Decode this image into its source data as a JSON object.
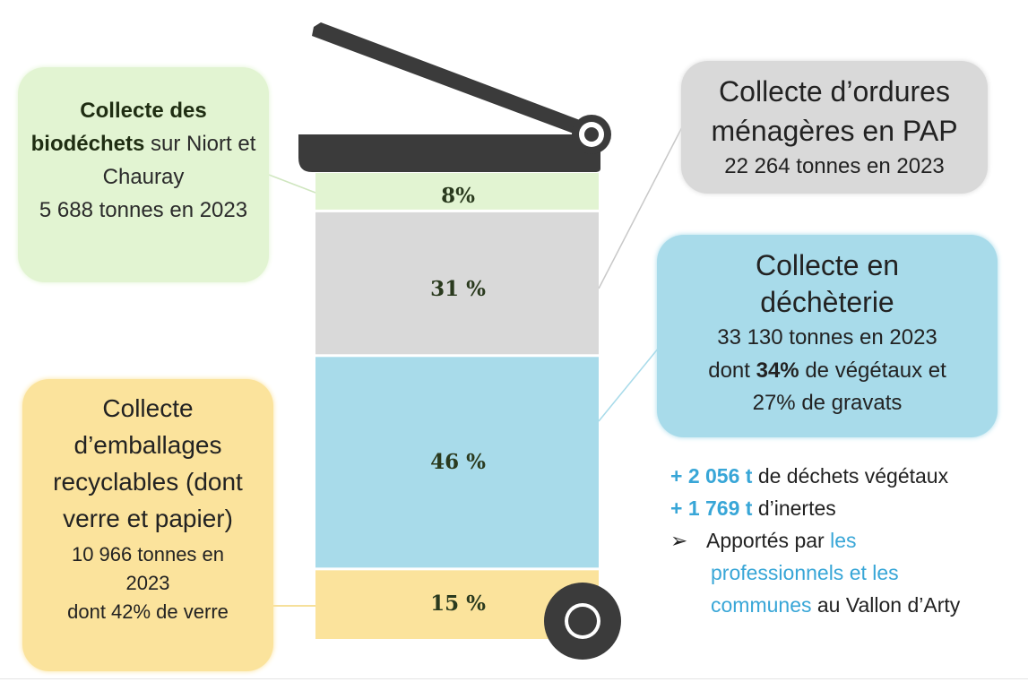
{
  "colors": {
    "biodechets": "#e2f4d2",
    "ordures": "#d9d9d9",
    "decheterie": "#a8dbea",
    "emballages": "#fbe39c",
    "bin_dark": "#3b3b3b",
    "accent_blue": "#38a6d7"
  },
  "chart_data": {
    "type": "stacked-bar",
    "categories": [
      "biodéchets",
      "ordures ménagères PAP",
      "déchèterie",
      "emballages recyclables"
    ],
    "values": [
      8,
      31,
      46,
      15
    ],
    "labels": [
      "8%",
      "31 %",
      "46 %",
      "15 %"
    ]
  },
  "boxes": {
    "biodechets": {
      "title_bold": "Collecte des biodéchets",
      "title_rest": " sur Niort et Chauray",
      "tonnage": "5 688 tonnes en 2023"
    },
    "ordures": {
      "title_line1": "Collecte d’ordures",
      "title_line2": "ménagères en PAP",
      "tonnage": "22 264 tonnes en 2023"
    },
    "decheterie": {
      "title_line1": "Collecte en",
      "title_line2": "déchèterie",
      "tonnage": "33 130 tonnes en 2023",
      "detail_pre": "dont ",
      "detail_bold": "34%",
      "detail_post": " de végétaux et",
      "detail_line2": "27% de gravats"
    },
    "emballages": {
      "title": "Collecte d’emballages recyclables (dont verre et papier)",
      "tonnage": "10 966 tonnes en 2023",
      "detail": "dont 42% de verre"
    }
  },
  "bullets": {
    "vegetaux_amount": "+ 2 056 t",
    "vegetaux_text": " de déchets végétaux",
    "inertes_amount": "+ 1 769 t",
    "inertes_text": " d’inertes",
    "arrow": "➢",
    "apport_pre": "Apportés par ",
    "apport_link1": "les",
    "apport_link2": "professionnels et les",
    "apport_link3": "communes",
    "apport_post": " au Vallon d’Arty"
  }
}
